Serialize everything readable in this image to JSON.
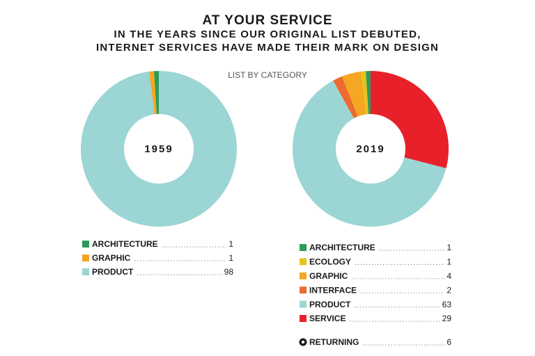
{
  "title": "AT YOUR SERVICE",
  "subtitle": [
    "IN THE YEARS SINCE OUR ORIGINAL LIST DEBUTED,",
    "INTERNET SERVICES HAVE MADE THEIR MARK ON DESIGN"
  ],
  "note": "LIST BY CATEGORY",
  "chart_data": [
    {
      "type": "pie",
      "center_label": "1959",
      "categories": [
        "ARCHITECTURE",
        "GRAPHIC",
        "PRODUCT"
      ],
      "values": [
        1,
        1,
        98
      ],
      "colors": [
        "#2e9a5a",
        "#f5a623",
        "#9bd5d4"
      ]
    },
    {
      "type": "pie",
      "center_label": "2019",
      "categories": [
        "ARCHITECTURE",
        "ECOLOGY",
        "GRAPHIC",
        "INTERFACE",
        "PRODUCT",
        "SERVICE"
      ],
      "values": [
        1,
        1,
        4,
        2,
        63,
        29
      ],
      "colors": [
        "#2e9a5a",
        "#e6c31c",
        "#f5a623",
        "#ec6b2d",
        "#9bd5d4",
        "#e8202a"
      ]
    }
  ],
  "returning": {
    "label": "RETURNING",
    "value": 6
  }
}
